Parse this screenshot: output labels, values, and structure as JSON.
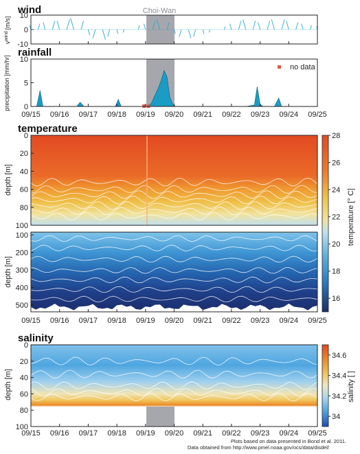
{
  "storm": {
    "label": "Choi-Wan",
    "start": 4.0,
    "end": 4.95,
    "color": "#9ea0a6"
  },
  "dates": [
    "09/15",
    "09/16",
    "09/17",
    "09/18",
    "09/19",
    "09/20",
    "09/21",
    "09/22",
    "09/23",
    "09/24",
    "09/25"
  ],
  "colors": {
    "wind": "#2aa7c9",
    "rain": "#1a9cc4",
    "nodata": "#e05a4e",
    "temperature_scale": [
      "#1b2d6b",
      "#1f4f9a",
      "#2f7fc4",
      "#5fb1e0",
      "#a9d6ec",
      "#f1e3a0",
      "#efc24a",
      "#ec9a2e",
      "#e8692a",
      "#e24a22"
    ],
    "salinity_scale": [
      "#1b4fb0",
      "#2f7fd0",
      "#5aaee6",
      "#a9d6ee",
      "#e9e0b8",
      "#f0c45a",
      "#ea8a28",
      "#e24a1e"
    ]
  },
  "chart_data": [
    {
      "type": "line",
      "panel": "wind",
      "title": "wind",
      "ylabel": "v^wind [m/s]",
      "ylabel_main": "v",
      "ylabel_sup": "wind",
      "ylabel_unit": "[m/s]",
      "ylim": [
        -10,
        10
      ],
      "yticks": [
        "10",
        "0",
        "-10"
      ],
      "x": [
        0,
        0.25,
        0.5,
        0.75,
        1,
        1.25,
        1.5,
        1.75,
        2,
        2.25,
        2.5,
        2.75,
        3,
        3.25,
        3.5,
        3.75,
        4,
        4.25,
        4.5,
        4.75,
        5,
        5.25,
        5.5,
        5.75,
        6,
        6.25,
        6.5,
        6.75,
        7,
        7.25,
        7.5,
        7.75,
        8,
        8.25,
        8.5,
        8.75,
        9,
        9.25,
        9.5,
        9.75,
        10
      ],
      "values": [
        3,
        4,
        5,
        6,
        6,
        7,
        8,
        6,
        -4,
        -6,
        -7,
        -5,
        -3,
        -2,
        0,
        3,
        4,
        6,
        7,
        5,
        -3,
        -5,
        -6,
        -5,
        -3,
        -2,
        0,
        2,
        4,
        6,
        7,
        6,
        5,
        6,
        7,
        7,
        6,
        5,
        4,
        3,
        2
      ]
    },
    {
      "type": "area",
      "panel": "rainfall",
      "title": "rainfall",
      "ylabel": "precipitation [mm/hr]",
      "ylim": [
        0,
        10
      ],
      "yticks": [
        "10",
        "5",
        "0"
      ],
      "legend": "no data",
      "nodata_x": [
        3.95,
        4.1
      ],
      "x": [
        0,
        0.2,
        0.32,
        0.42,
        0.6,
        1,
        1.6,
        1.72,
        1.85,
        2,
        2.5,
        2.95,
        3.05,
        3.15,
        3.5,
        4,
        4.2,
        4.45,
        4.55,
        4.65,
        4.75,
        4.85,
        4.95,
        5.05,
        5.5,
        6,
        7,
        7.5,
        7.8,
        7.9,
        8.0,
        8.1,
        8.5,
        8.65,
        8.75,
        9,
        10
      ],
      "values": [
        0,
        0,
        3.4,
        0,
        0,
        0,
        0,
        0.9,
        0,
        0,
        0,
        0,
        1.5,
        0,
        0,
        0,
        0.6,
        4.0,
        5.5,
        7.6,
        6.2,
        2.0,
        0.5,
        0,
        0,
        0,
        0,
        0,
        0.3,
        4.2,
        0.5,
        0,
        0,
        1.8,
        0,
        0,
        0
      ]
    },
    {
      "type": "heatmap",
      "panel": "temperature-upper",
      "title": "temperature",
      "ylabel": "depth [m]",
      "ylim": [
        100,
        0
      ],
      "yticks": [
        "0",
        "20",
        "40",
        "60",
        "80",
        "100"
      ]
    },
    {
      "type": "heatmap",
      "panel": "temperature-lower",
      "ylabel": "depth [m]",
      "ylim": [
        550,
        100
      ],
      "yticks": [
        "100",
        "200",
        "300",
        "400",
        "500"
      ]
    },
    {
      "type": "heatmap",
      "panel": "temperature-colorbar",
      "ylabel": "temperature [° C]",
      "ylim": [
        15,
        28
      ],
      "yticks": [
        "28",
        "26",
        "24",
        "22",
        "20",
        "18",
        "16"
      ]
    },
    {
      "type": "heatmap",
      "panel": "salinity",
      "title": "salinity",
      "ylabel": "depth [m]",
      "ylim": [
        100,
        0
      ],
      "yticks": [
        "0",
        "20",
        "40",
        "60",
        "80",
        "100"
      ]
    },
    {
      "type": "heatmap",
      "panel": "salinity-colorbar",
      "ylabel": "salinity [ ]",
      "ylim": [
        33.9,
        34.7
      ],
      "yticks": [
        "34.6",
        "34.4",
        "34.2",
        "34"
      ]
    }
  ],
  "credits": {
    "line1": "Plots based on data presented in Bond et al. 2011.",
    "line2": "Data obtained from http://www.pmel.noaa.gov/ocs/data/disdel/"
  }
}
